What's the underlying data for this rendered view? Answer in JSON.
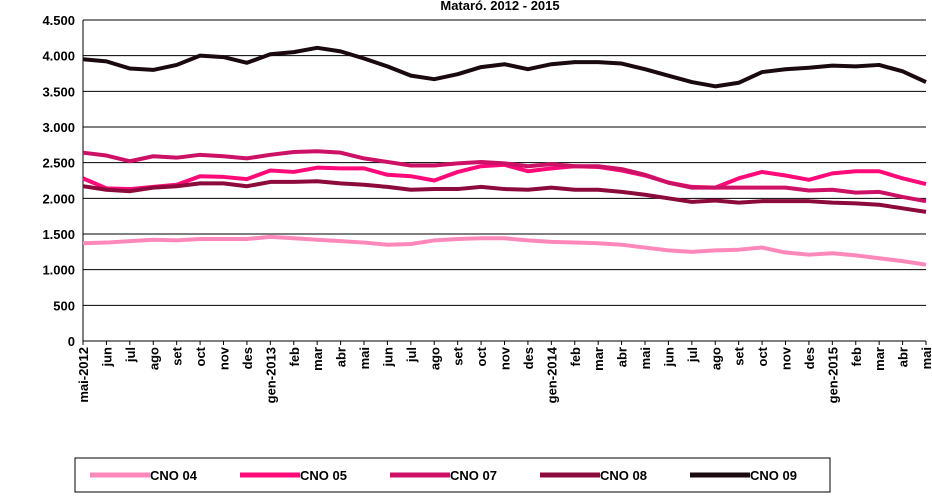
{
  "chart_data": {
    "type": "line",
    "title": "Mataró. 2012 - 2015",
    "categories": [
      "mai-2012",
      "jun",
      "jul",
      "ago",
      "set",
      "oct",
      "nov",
      "des",
      "gen-2013",
      "feb",
      "mar",
      "abr",
      "mai",
      "jun",
      "jul",
      "ago",
      "set",
      "oct",
      "nov",
      "des",
      "gen-2014",
      "feb",
      "mar",
      "abr",
      "mai",
      "jun",
      "jul",
      "ago",
      "set",
      "oct",
      "nov",
      "des",
      "gen-2015",
      "feb",
      "mar",
      "abr",
      "mai"
    ],
    "series": [
      {
        "name": "CNO 04",
        "color": "#ff88bb",
        "values": [
          1370,
          1380,
          1400,
          1420,
          1410,
          1430,
          1430,
          1430,
          1460,
          1440,
          1420,
          1400,
          1380,
          1350,
          1360,
          1410,
          1430,
          1440,
          1440,
          1410,
          1390,
          1380,
          1370,
          1350,
          1310,
          1270,
          1250,
          1270,
          1280,
          1310,
          1240,
          1210,
          1230,
          1200,
          1160,
          1120,
          1070
        ]
      },
      {
        "name": "CNO 05",
        "color": "#ff0a78",
        "values": [
          2280,
          2140,
          2130,
          2160,
          2190,
          2310,
          2300,
          2270,
          2390,
          2370,
          2430,
          2420,
          2420,
          2330,
          2310,
          2250,
          2370,
          2450,
          2470,
          2380,
          2420,
          2450,
          2440,
          2390,
          2320,
          2220,
          2160,
          2150,
          2280,
          2370,
          2320,
          2260,
          2350,
          2380,
          2380,
          2280,
          2200
        ]
      },
      {
        "name": "CNO 07",
        "color": "#cc1166",
        "values": [
          2640,
          2600,
          2520,
          2590,
          2570,
          2610,
          2590,
          2560,
          2610,
          2650,
          2660,
          2640,
          2560,
          2510,
          2460,
          2460,
          2490,
          2510,
          2490,
          2450,
          2480,
          2450,
          2450,
          2410,
          2330,
          2220,
          2150,
          2150,
          2150,
          2150,
          2150,
          2110,
          2120,
          2080,
          2090,
          2020,
          1960
        ]
      },
      {
        "name": "CNO 08",
        "color": "#8c0a3c",
        "values": [
          2170,
          2120,
          2100,
          2150,
          2170,
          2210,
          2210,
          2170,
          2230,
          2230,
          2240,
          2210,
          2190,
          2160,
          2120,
          2130,
          2130,
          2160,
          2130,
          2120,
          2150,
          2120,
          2120,
          2090,
          2050,
          2000,
          1950,
          1970,
          1940,
          1960,
          1960,
          1960,
          1940,
          1930,
          1910,
          1860,
          1810
        ]
      },
      {
        "name": "CNO 09",
        "color": "#1a0a10",
        "values": [
          3950,
          3920,
          3820,
          3800,
          3870,
          4000,
          3980,
          3900,
          4020,
          4050,
          4110,
          4060,
          3960,
          3850,
          3720,
          3670,
          3740,
          3840,
          3880,
          3810,
          3880,
          3910,
          3910,
          3890,
          3810,
          3720,
          3630,
          3570,
          3620,
          3770,
          3810,
          3830,
          3860,
          3850,
          3870,
          3780,
          3630
        ]
      }
    ],
    "ylim": [
      0,
      4500
    ],
    "yticks": [
      0,
      500,
      {
        "value": 1000,
        "label": "1.000"
      },
      {
        "value": 1500,
        "label": "1.500"
      },
      {
        "value": 2000,
        "label": "2.000"
      },
      {
        "value": 2500,
        "label": "2.500"
      },
      {
        "value": 3000,
        "label": "3.000"
      },
      {
        "value": 3500,
        "label": "3.500"
      },
      {
        "value": 4000,
        "label": "4.000"
      },
      {
        "value": 4500,
        "label": "4.500"
      }
    ],
    "grid": true
  }
}
